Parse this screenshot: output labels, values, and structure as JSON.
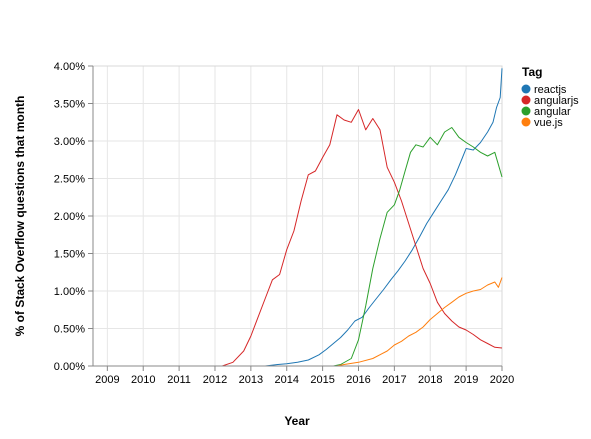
{
  "chart_data": {
    "type": "line",
    "xlabel": "Year",
    "ylabel": "% of Stack Overflow questions that month",
    "x_ticks": [
      "2009",
      "2010",
      "2011",
      "2012",
      "2013",
      "2014",
      "2015",
      "2016",
      "2017",
      "2018",
      "2019",
      "2020"
    ],
    "y_ticks": [
      "0.00%",
      "0.50%",
      "1.00%",
      "1.50%",
      "2.00%",
      "2.50%",
      "3.00%",
      "3.50%",
      "4.00%"
    ],
    "xlim": [
      2008.6,
      2020.0
    ],
    "ylim": [
      0,
      4.0
    ],
    "y_unit": "%",
    "grid": true,
    "legend": {
      "title": "Tag",
      "placement": "right"
    },
    "series": [
      {
        "name": "reactjs",
        "color": "#1f77b4",
        "points": [
          [
            2008.6,
            0
          ],
          [
            2013.4,
            0
          ],
          [
            2013.75,
            0.02
          ],
          [
            2014.0,
            0.03
          ],
          [
            2014.3,
            0.05
          ],
          [
            2014.6,
            0.08
          ],
          [
            2014.9,
            0.15
          ],
          [
            2015.1,
            0.22
          ],
          [
            2015.3,
            0.3
          ],
          [
            2015.5,
            0.38
          ],
          [
            2015.7,
            0.48
          ],
          [
            2015.9,
            0.6
          ],
          [
            2016.1,
            0.65
          ],
          [
            2016.3,
            0.78
          ],
          [
            2016.5,
            0.9
          ],
          [
            2016.7,
            1.02
          ],
          [
            2016.9,
            1.15
          ],
          [
            2017.1,
            1.27
          ],
          [
            2017.3,
            1.4
          ],
          [
            2017.5,
            1.55
          ],
          [
            2017.7,
            1.72
          ],
          [
            2017.9,
            1.9
          ],
          [
            2018.1,
            2.05
          ],
          [
            2018.3,
            2.2
          ],
          [
            2018.5,
            2.35
          ],
          [
            2018.7,
            2.55
          ],
          [
            2018.9,
            2.78
          ],
          [
            2019.0,
            2.9
          ],
          [
            2019.2,
            2.88
          ],
          [
            2019.4,
            2.98
          ],
          [
            2019.6,
            3.12
          ],
          [
            2019.75,
            3.25
          ],
          [
            2019.85,
            3.45
          ],
          [
            2019.95,
            3.58
          ],
          [
            2020.0,
            3.97
          ]
        ]
      },
      {
        "name": "angularjs",
        "color": "#d62728",
        "points": [
          [
            2008.6,
            0
          ],
          [
            2012.2,
            0
          ],
          [
            2012.5,
            0.05
          ],
          [
            2012.8,
            0.2
          ],
          [
            2013.0,
            0.4
          ],
          [
            2013.2,
            0.65
          ],
          [
            2013.4,
            0.9
          ],
          [
            2013.6,
            1.15
          ],
          [
            2013.8,
            1.22
          ],
          [
            2014.0,
            1.55
          ],
          [
            2014.2,
            1.8
          ],
          [
            2014.4,
            2.2
          ],
          [
            2014.6,
            2.55
          ],
          [
            2014.8,
            2.6
          ],
          [
            2015.0,
            2.78
          ],
          [
            2015.2,
            2.95
          ],
          [
            2015.4,
            3.35
          ],
          [
            2015.6,
            3.28
          ],
          [
            2015.8,
            3.25
          ],
          [
            2016.0,
            3.42
          ],
          [
            2016.2,
            3.15
          ],
          [
            2016.4,
            3.3
          ],
          [
            2016.6,
            3.15
          ],
          [
            2016.8,
            2.65
          ],
          [
            2017.0,
            2.45
          ],
          [
            2017.2,
            2.2
          ],
          [
            2017.4,
            1.9
          ],
          [
            2017.6,
            1.6
          ],
          [
            2017.8,
            1.3
          ],
          [
            2018.0,
            1.1
          ],
          [
            2018.2,
            0.85
          ],
          [
            2018.4,
            0.7
          ],
          [
            2018.6,
            0.6
          ],
          [
            2018.8,
            0.52
          ],
          [
            2019.0,
            0.48
          ],
          [
            2019.2,
            0.42
          ],
          [
            2019.4,
            0.35
          ],
          [
            2019.6,
            0.3
          ],
          [
            2019.8,
            0.25
          ],
          [
            2020.0,
            0.24
          ]
        ]
      },
      {
        "name": "angular",
        "color": "#2ca02c",
        "points": [
          [
            2008.6,
            0
          ],
          [
            2015.3,
            0
          ],
          [
            2015.5,
            0.02
          ],
          [
            2015.8,
            0.1
          ],
          [
            2016.0,
            0.35
          ],
          [
            2016.2,
            0.8
          ],
          [
            2016.4,
            1.3
          ],
          [
            2016.6,
            1.7
          ],
          [
            2016.8,
            2.05
          ],
          [
            2017.0,
            2.15
          ],
          [
            2017.15,
            2.35
          ],
          [
            2017.3,
            2.6
          ],
          [
            2017.45,
            2.85
          ],
          [
            2017.6,
            2.95
          ],
          [
            2017.8,
            2.92
          ],
          [
            2018.0,
            3.05
          ],
          [
            2018.2,
            2.95
          ],
          [
            2018.4,
            3.12
          ],
          [
            2018.6,
            3.18
          ],
          [
            2018.8,
            3.05
          ],
          [
            2019.0,
            2.98
          ],
          [
            2019.2,
            2.92
          ],
          [
            2019.4,
            2.85
          ],
          [
            2019.6,
            2.8
          ],
          [
            2019.8,
            2.85
          ],
          [
            2020.0,
            2.52
          ]
        ]
      },
      {
        "name": "vue.js",
        "color": "#ff7f0e",
        "points": [
          [
            2008.6,
            0
          ],
          [
            2015.4,
            0
          ],
          [
            2015.6,
            0.02
          ],
          [
            2016.0,
            0.05
          ],
          [
            2016.4,
            0.1
          ],
          [
            2016.8,
            0.2
          ],
          [
            2017.0,
            0.28
          ],
          [
            2017.2,
            0.33
          ],
          [
            2017.4,
            0.4
          ],
          [
            2017.6,
            0.45
          ],
          [
            2017.8,
            0.52
          ],
          [
            2018.0,
            0.62
          ],
          [
            2018.2,
            0.7
          ],
          [
            2018.4,
            0.78
          ],
          [
            2018.6,
            0.85
          ],
          [
            2018.8,
            0.92
          ],
          [
            2019.0,
            0.97
          ],
          [
            2019.2,
            1.0
          ],
          [
            2019.4,
            1.02
          ],
          [
            2019.6,
            1.08
          ],
          [
            2019.8,
            1.12
          ],
          [
            2019.9,
            1.05
          ],
          [
            2020.0,
            1.18
          ]
        ]
      }
    ]
  }
}
